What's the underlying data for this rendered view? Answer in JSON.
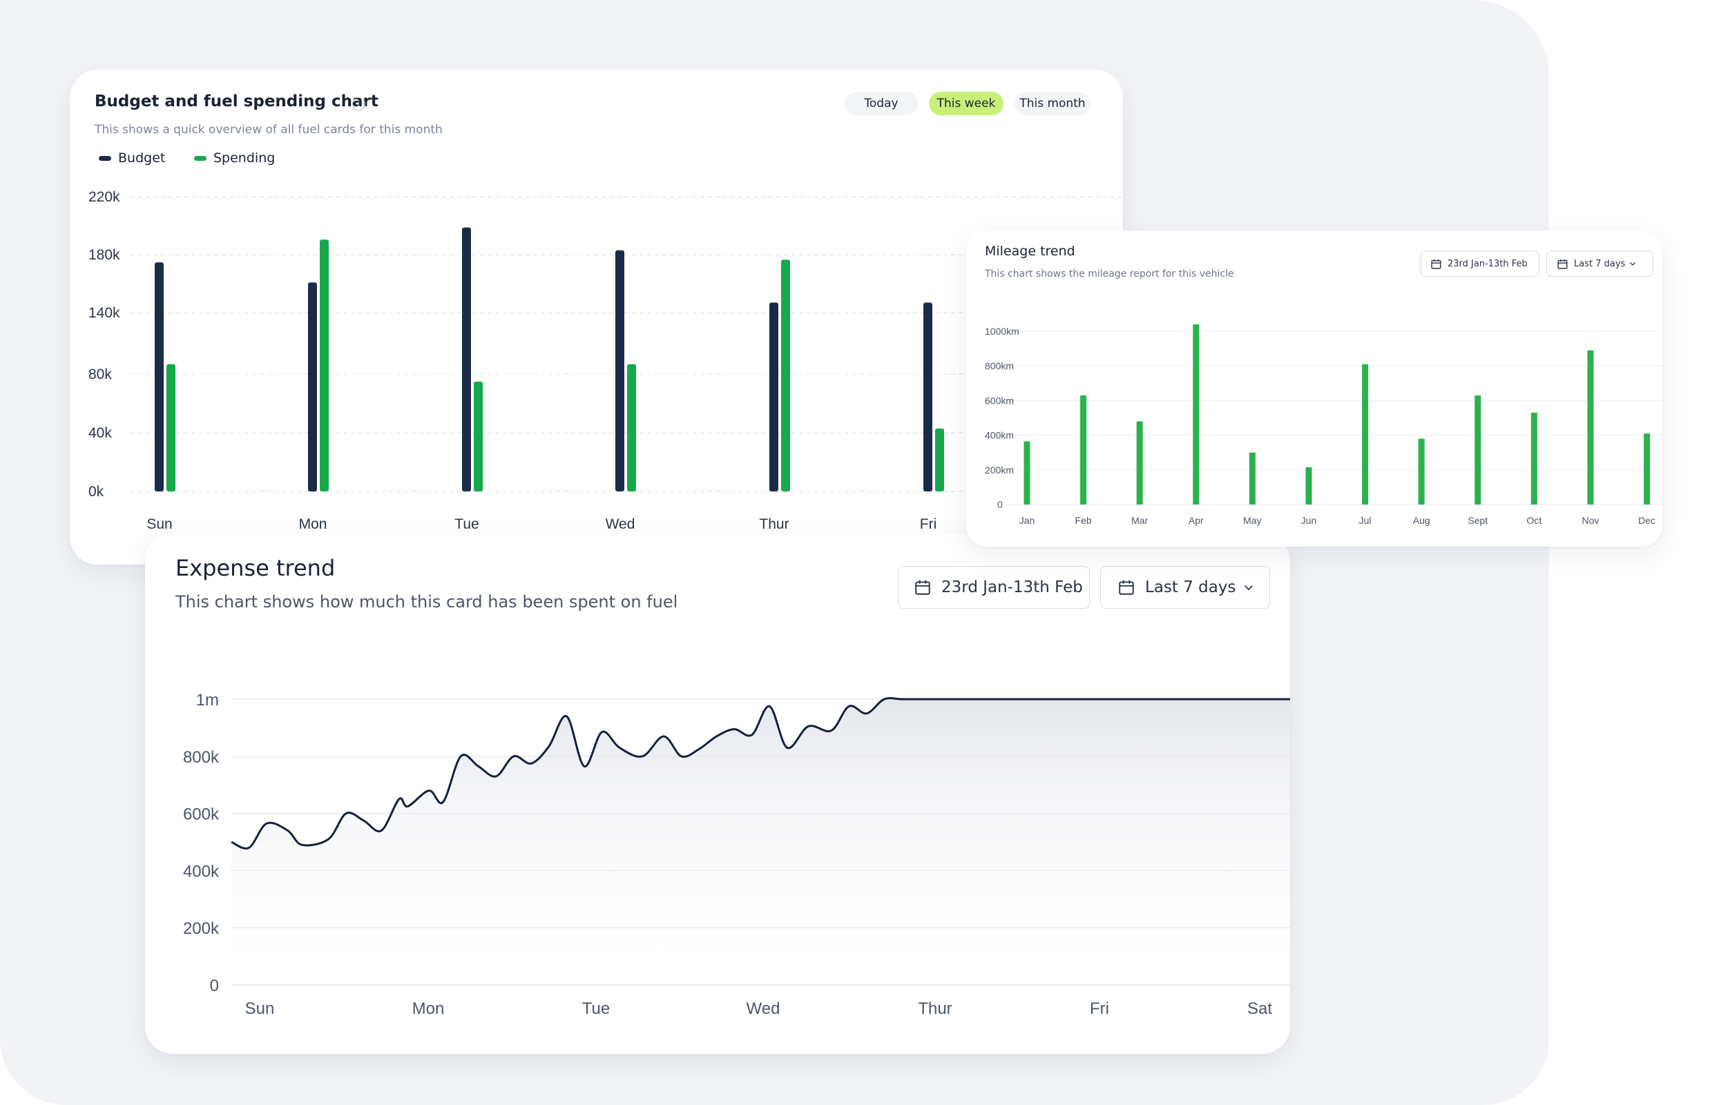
{
  "budget_card": {
    "title": "Budget and fuel spending chart",
    "subtitle": "This shows a quick overview of all fuel cards for this month",
    "tabs": [
      {
        "label": "Today",
        "active": false
      },
      {
        "label": "This week",
        "active": true
      },
      {
        "label": "This month",
        "active": false
      }
    ],
    "legend": [
      {
        "label": "Budget",
        "color": "#1b2a47"
      },
      {
        "label": "Spending",
        "color": "#17a84b"
      }
    ]
  },
  "mileage_card": {
    "title": "Mileage trend",
    "subtitle": "This chart shows the mileage report for this vehicle",
    "date_range": "23rd Jan-13th Feb",
    "period": "Last 7 days"
  },
  "expense_card": {
    "title": "Expense trend",
    "subtitle": "This chart shows how much this card has been spent on fuel",
    "date_range": "23rd Jan-13th Feb",
    "period": "Last 7 days"
  },
  "colors": {
    "budget": "#1b2a47",
    "spending": "#17a84b",
    "mileage": "#2bb24c",
    "line": "#14213a",
    "active_tab": "#c8f07a"
  },
  "chart_data": [
    {
      "type": "bar",
      "title": "Budget and fuel spending chart",
      "categories": [
        "Sun",
        "Mon",
        "Tue",
        "Wed",
        "Thur",
        "Fri"
      ],
      "y_ticks": [
        "0k",
        "40k",
        "80k",
        "140k",
        "180k",
        "220k"
      ],
      "ylim": [
        0,
        220000
      ],
      "series": [
        {
          "name": "Budget",
          "values": [
            171000,
            156000,
            197000,
            180000,
            141000,
            141000
          ]
        },
        {
          "name": "Spending",
          "values": [
            95000,
            188000,
            82000,
            95000,
            173000,
            47000
          ]
        }
      ],
      "grid": true,
      "legend": "top-left"
    },
    {
      "type": "bar",
      "title": "Mileage trend",
      "categories": [
        "Jan",
        "Feb",
        "Mar",
        "Apr",
        "May",
        "Jun",
        "Jul",
        "Aug",
        "Sept",
        "Oct",
        "Nov",
        "Dec"
      ],
      "y_ticks": [
        "0",
        "200km",
        "400km",
        "600km",
        "800km",
        "1000km"
      ],
      "ylim": [
        0,
        1000
      ],
      "series": [
        {
          "values": [
            365,
            630,
            480,
            1040,
            300,
            215,
            810,
            380,
            630,
            530,
            890,
            410
          ]
        }
      ],
      "grid": true
    },
    {
      "type": "area",
      "title": "Expense trend",
      "categories": [
        "Sun",
        "Mon",
        "Tue",
        "Wed",
        "Thur",
        "Fri",
        "Sat"
      ],
      "y_ticks": [
        "0",
        "200k",
        "400k",
        "600k",
        "800k",
        "1m"
      ],
      "ylim": [
        0,
        1000000
      ],
      "x": [
        0,
        0.1,
        0.2,
        0.32,
        0.4,
        0.55,
        0.65,
        0.75,
        0.85,
        0.95,
        1.0,
        1.12,
        1.2,
        1.3,
        1.4,
        1.5,
        1.6,
        1.7,
        1.8,
        1.9,
        2.0,
        2.1,
        2.2,
        2.33,
        2.45,
        2.55,
        2.65,
        2.75,
        2.85,
        2.95,
        3.05,
        3.15,
        3.27,
        3.4,
        3.5,
        3.6,
        3.7,
        3.8,
        3.95,
        4.05,
        4.15,
        4.3,
        4.4,
        4.55,
        4.7,
        4.8,
        4.9,
        5.0,
        5.1,
        5.2,
        5.35,
        5.5,
        5.6,
        5.73,
        5.85,
        6.0
      ],
      "values": [
        500000,
        480000,
        565000,
        540000,
        490000,
        510000,
        600000,
        575000,
        540000,
        650000,
        625000,
        680000,
        640000,
        800000,
        765000,
        730000,
        800000,
        775000,
        835000,
        940000,
        765000,
        885000,
        830000,
        800000,
        870000,
        800000,
        825000,
        870000,
        895000,
        875000,
        975000,
        830000,
        905000,
        890000,
        975000,
        950000,
        1000000,
        1000000,
        1000000,
        1000000,
        1000000,
        1000000,
        1000000,
        1000000,
        1000000,
        1000000,
        1000000,
        1000000,
        1000000,
        1000000,
        1000000,
        1000000,
        1000000,
        1000000,
        1000000,
        1000000
      ],
      "grid": true
    }
  ]
}
